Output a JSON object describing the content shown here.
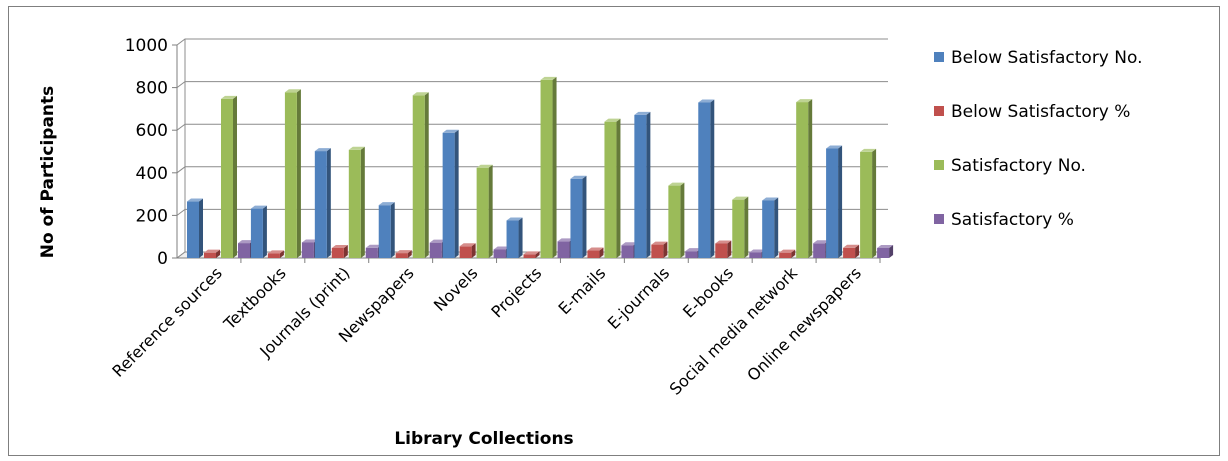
{
  "chart_data": {
    "type": "bar",
    "title": "",
    "xlabel": "Library Collections",
    "ylabel": "No of Participants",
    "ylim": [
      0,
      1000
    ],
    "yticks": [
      0,
      200,
      400,
      600,
      800,
      1000
    ],
    "grid": true,
    "legend_position": "right",
    "categories": [
      "Reference sources",
      "Textbooks",
      "Journals (print)",
      "Newspapers",
      "Novels",
      "Projects",
      "E-mails",
      "E-journals",
      "E-books",
      "Social media network",
      "Online newspapers"
    ],
    "series": [
      {
        "name": "Below Satisfactory No.",
        "color": "#4f81bd",
        "values": [
          265,
          232,
          502,
          248,
          588,
          176,
          372,
          672,
          730,
          270,
          514
        ]
      },
      {
        "name": "Below Satisfactory %",
        "color": "#c0504d",
        "values": [
          25,
          22,
          47,
          23,
          55,
          17,
          35,
          63,
          68,
          25,
          48
        ]
      },
      {
        "name": "Satisfactory No.",
        "color": "#9bbb59",
        "values": [
          747,
          778,
          508,
          764,
          424,
          836,
          640,
          340,
          274,
          732,
          498
        ]
      },
      {
        "name": "Satisfactory %",
        "color": "#8064a2",
        "values": [
          70,
          73,
          48,
          72,
          40,
          78,
          60,
          32,
          26,
          69,
          47
        ]
      }
    ]
  }
}
